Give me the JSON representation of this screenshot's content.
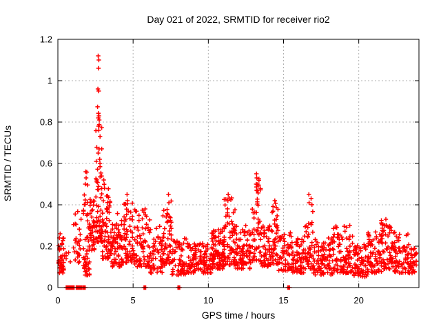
{
  "chart_data": {
    "type": "scatter",
    "title": "Day 021 of 2022, SRMTID for receiver rio2",
    "xlabel": "GPS time / hours",
    "ylabel": "SRMTID / TECUs",
    "xlim": [
      0,
      24
    ],
    "ylim": [
      0,
      1.2
    ],
    "xticks": [
      0,
      5,
      10,
      15,
      20
    ],
    "yticks": [
      0,
      0.2,
      0.4,
      0.6,
      0.8,
      1,
      1.2
    ],
    "xtick_labels": [
      "0",
      "5",
      "10",
      "15",
      "20"
    ],
    "ytick_labels": [
      "0",
      "0.2",
      "0.4",
      "0.6",
      "0.8",
      "1",
      "1.2"
    ],
    "grid": "dashed",
    "legend": "none",
    "marker": "plus",
    "marker_color": "#ff0000",
    "grid_color": "#b0b0b0",
    "axis_color": "#000000",
    "background_color": "#ffffff",
    "peak_points": [
      [
        2.68,
        1.12
      ],
      [
        2.72,
        1.1
      ],
      [
        2.7,
        1.06
      ],
      [
        2.66,
        0.96
      ],
      [
        2.71,
        0.95
      ],
      [
        2.73,
        0.83
      ],
      [
        2.69,
        0.82
      ],
      [
        2.75,
        0.81
      ],
      [
        2.7,
        0.78
      ],
      [
        2.72,
        0.76
      ],
      [
        2.74,
        0.67
      ],
      [
        2.68,
        0.65
      ],
      [
        2.78,
        0.62
      ],
      [
        2.55,
        0.61
      ],
      [
        2.8,
        0.6
      ],
      [
        3.05,
        0.52
      ],
      [
        3.1,
        0.48
      ],
      [
        1.85,
        0.56
      ],
      [
        1.88,
        0.53
      ],
      [
        1.82,
        0.5
      ],
      [
        13.2,
        0.55
      ],
      [
        13.22,
        0.53
      ],
      [
        13.18,
        0.5
      ],
      [
        13.21,
        0.47
      ],
      [
        11.32,
        0.45
      ],
      [
        11.3,
        0.42
      ],
      [
        16.68,
        0.45
      ],
      [
        16.7,
        0.41
      ],
      [
        14.42,
        0.42
      ],
      [
        4.6,
        0.45
      ],
      [
        4.62,
        0.42
      ],
      [
        7.35,
        0.45
      ],
      [
        7.38,
        0.41
      ],
      [
        5.8,
        0.38
      ],
      [
        19.4,
        0.3
      ],
      [
        18.5,
        0.29
      ],
      [
        21.8,
        0.33
      ],
      [
        21.82,
        0.3
      ],
      [
        0.15,
        0.26
      ],
      [
        0.1,
        0.24
      ]
    ],
    "clusters": [
      {
        "x0": 0.02,
        "x1": 0.38,
        "y0": 0.07,
        "y1": 0.25,
        "n": 42,
        "bias": 1.3
      },
      {
        "x0": 0.45,
        "x1": 1.0,
        "y0": 0.1,
        "y1": 0.17,
        "n": 6,
        "bias": 1.2
      },
      {
        "x0": 1.05,
        "x1": 1.6,
        "y0": 0.12,
        "y1": 0.38,
        "n": 28,
        "bias": 1.6
      },
      {
        "x0": 1.7,
        "x1": 2.1,
        "y0": 0.06,
        "y1": 0.56,
        "n": 50,
        "bias": 1.9
      },
      {
        "x0": 2.1,
        "x1": 2.45,
        "y0": 0.18,
        "y1": 0.45,
        "n": 40,
        "bias": 1.5
      },
      {
        "x0": 2.5,
        "x1": 2.95,
        "y0": 0.22,
        "y1": 0.88,
        "n": 65,
        "bias": 2.1
      },
      {
        "x0": 2.95,
        "x1": 3.5,
        "y0": 0.14,
        "y1": 0.5,
        "n": 60,
        "bias": 1.8
      },
      {
        "x0": 3.5,
        "x1": 4.3,
        "y0": 0.1,
        "y1": 0.36,
        "n": 75,
        "bias": 1.4
      },
      {
        "x0": 4.3,
        "x1": 5.0,
        "y0": 0.12,
        "y1": 0.43,
        "n": 60,
        "bias": 1.6
      },
      {
        "x0": 5.0,
        "x1": 6.1,
        "y0": 0.1,
        "y1": 0.38,
        "n": 75,
        "bias": 1.6
      },
      {
        "x0": 6.1,
        "x1": 7.0,
        "y0": 0.07,
        "y1": 0.3,
        "n": 65,
        "bias": 1.5
      },
      {
        "x0": 7.0,
        "x1": 7.6,
        "y0": 0.1,
        "y1": 0.44,
        "n": 48,
        "bias": 1.8
      },
      {
        "x0": 7.6,
        "x1": 8.6,
        "y0": 0.06,
        "y1": 0.24,
        "n": 65,
        "bias": 1.3
      },
      {
        "x0": 8.6,
        "x1": 10.2,
        "y0": 0.07,
        "y1": 0.22,
        "n": 115,
        "bias": 1.3
      },
      {
        "x0": 10.2,
        "x1": 11.0,
        "y0": 0.09,
        "y1": 0.28,
        "n": 85,
        "bias": 1.4
      },
      {
        "x0": 11.0,
        "x1": 11.8,
        "y0": 0.11,
        "y1": 0.44,
        "n": 75,
        "bias": 1.8
      },
      {
        "x0": 11.8,
        "x1": 12.85,
        "y0": 0.09,
        "y1": 0.3,
        "n": 85,
        "bias": 1.4
      },
      {
        "x0": 12.9,
        "x1": 13.5,
        "y0": 0.13,
        "y1": 0.54,
        "n": 52,
        "bias": 1.9
      },
      {
        "x0": 13.5,
        "x1": 14.2,
        "y0": 0.1,
        "y1": 0.3,
        "n": 58,
        "bias": 1.4
      },
      {
        "x0": 14.2,
        "x1": 14.7,
        "y0": 0.11,
        "y1": 0.41,
        "n": 42,
        "bias": 1.7
      },
      {
        "x0": 14.7,
        "x1": 15.6,
        "y0": 0.08,
        "y1": 0.27,
        "n": 58,
        "bias": 1.4
      },
      {
        "x0": 15.6,
        "x1": 16.4,
        "y0": 0.07,
        "y1": 0.24,
        "n": 62,
        "bias": 1.3
      },
      {
        "x0": 16.4,
        "x1": 17.0,
        "y0": 0.09,
        "y1": 0.44,
        "n": 48,
        "bias": 1.8
      },
      {
        "x0": 17.0,
        "x1": 18.3,
        "y0": 0.06,
        "y1": 0.24,
        "n": 95,
        "bias": 1.3
      },
      {
        "x0": 18.3,
        "x1": 19.6,
        "y0": 0.07,
        "y1": 0.3,
        "n": 88,
        "bias": 1.5
      },
      {
        "x0": 19.6,
        "x1": 20.6,
        "y0": 0.05,
        "y1": 0.21,
        "n": 72,
        "bias": 1.3
      },
      {
        "x0": 20.6,
        "x1": 21.5,
        "y0": 0.07,
        "y1": 0.27,
        "n": 72,
        "bias": 1.4
      },
      {
        "x0": 21.5,
        "x1": 22.2,
        "y0": 0.09,
        "y1": 0.33,
        "n": 62,
        "bias": 1.5
      },
      {
        "x0": 22.2,
        "x1": 23.3,
        "y0": 0.07,
        "y1": 0.27,
        "n": 82,
        "bias": 1.4
      },
      {
        "x0": 23.3,
        "x1": 23.85,
        "y0": 0.07,
        "y1": 0.19,
        "n": 42,
        "bias": 1.3
      }
    ],
    "zero_value_runs": [
      {
        "x0": 0.55,
        "x1": 1.08,
        "n": 30
      },
      {
        "x0": 1.22,
        "x1": 1.58,
        "n": 20
      },
      {
        "x0": 1.66,
        "x1": 1.82,
        "n": 10
      },
      {
        "x0": 5.72,
        "x1": 5.84,
        "n": 6
      },
      {
        "x0": 7.98,
        "x1": 8.1,
        "n": 6
      },
      {
        "x0": 15.28,
        "x1": 15.4,
        "n": 6
      }
    ]
  }
}
